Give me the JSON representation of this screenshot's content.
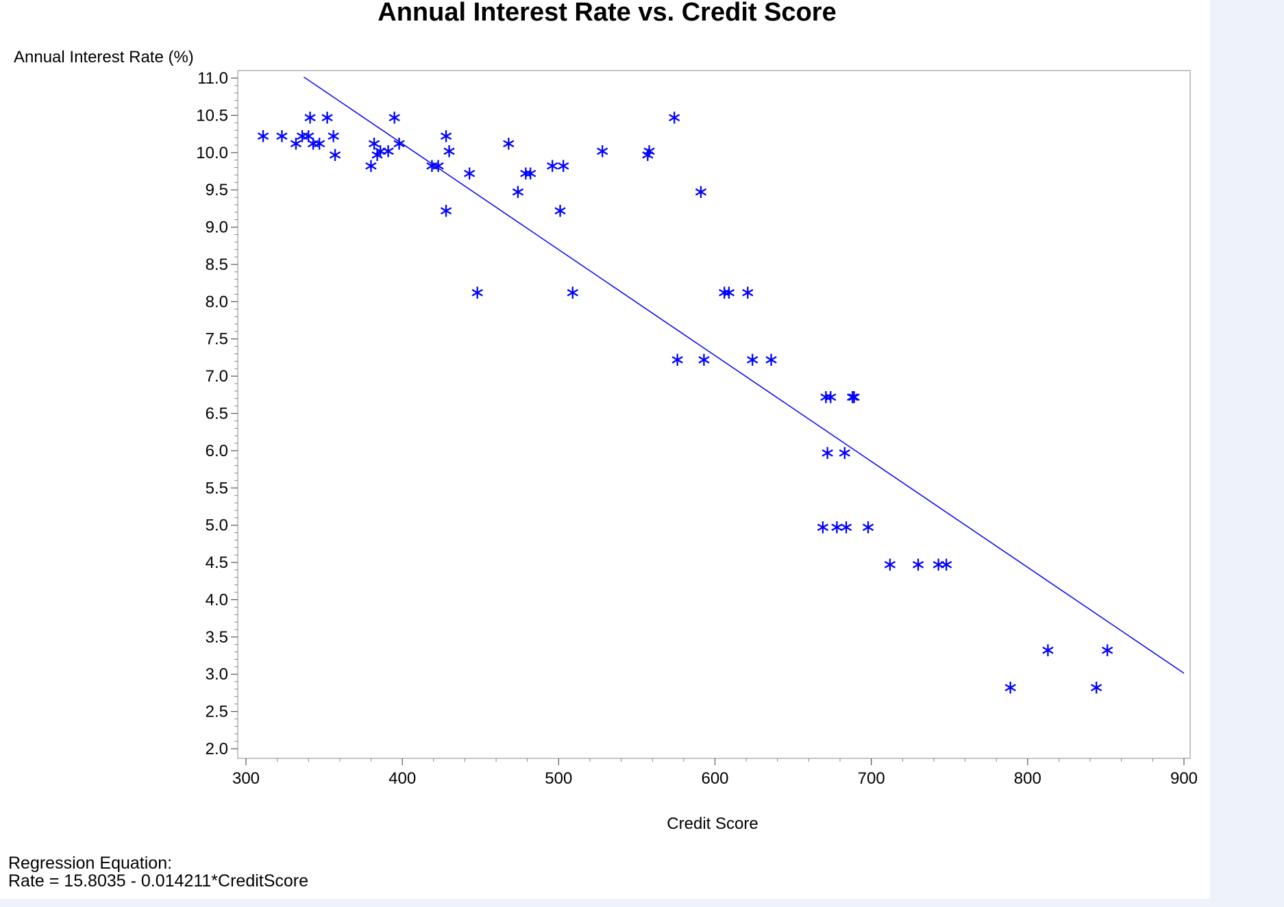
{
  "chart_data": {
    "type": "scatter",
    "title": "Annual Interest Rate vs. Credit Score",
    "xlabel": "Credit Score",
    "ylabel": "Annual Interest Rate (%)",
    "xlim": [
      300,
      900
    ],
    "ylim": [
      2.0,
      11.0
    ],
    "x_major_ticks": [
      "300",
      "400",
      "500",
      "600",
      "700",
      "800",
      "900"
    ],
    "y_major_ticks": [
      "2.0",
      "2.5",
      "3.0",
      "3.5",
      "4.0",
      "4.5",
      "5.0",
      "5.5",
      "6.0",
      "6.5",
      "7.0",
      "7.5",
      "8.0",
      "8.5",
      "9.0",
      "9.5",
      "10.0",
      "10.5",
      "11.0"
    ],
    "grid": false,
    "marker_symbol": "∗",
    "marker_color": "#0000ff",
    "line_color": "#0000ff",
    "regression": {
      "intercept": 15.8035,
      "slope": -0.014211,
      "x_range": [
        337,
        900
      ]
    },
    "points": [
      [
        311,
        10.25
      ],
      [
        323,
        10.25
      ],
      [
        332,
        10.15
      ],
      [
        336,
        10.25
      ],
      [
        340,
        10.25
      ],
      [
        341,
        10.5
      ],
      [
        343,
        10.15
      ],
      [
        347,
        10.15
      ],
      [
        352,
        10.5
      ],
      [
        356,
        10.25
      ],
      [
        357,
        10.0
      ],
      [
        380,
        9.85
      ],
      [
        382,
        10.15
      ],
      [
        384,
        10.0
      ],
      [
        386,
        10.05
      ],
      [
        391,
        10.05
      ],
      [
        395,
        10.5
      ],
      [
        398,
        10.15
      ],
      [
        419,
        9.85
      ],
      [
        423,
        9.85
      ],
      [
        428,
        10.25
      ],
      [
        428,
        9.25
      ],
      [
        430,
        10.05
      ],
      [
        443,
        9.75
      ],
      [
        448,
        8.15
      ],
      [
        468,
        10.15
      ],
      [
        474,
        9.5
      ],
      [
        479,
        9.75
      ],
      [
        482,
        9.75
      ],
      [
        496,
        9.85
      ],
      [
        501,
        9.25
      ],
      [
        503,
        9.85
      ],
      [
        509,
        8.15
      ],
      [
        528,
        10.05
      ],
      [
        557,
        10.0
      ],
      [
        558,
        10.05
      ],
      [
        574,
        10.5
      ],
      [
        576,
        7.25
      ],
      [
        591,
        9.5
      ],
      [
        593,
        7.25
      ],
      [
        606,
        8.15
      ],
      [
        609,
        8.15
      ],
      [
        621,
        8.15
      ],
      [
        624,
        7.25
      ],
      [
        636,
        7.25
      ],
      [
        669,
        5.0
      ],
      [
        671,
        6.75
      ],
      [
        672,
        6.0
      ],
      [
        674,
        6.75
      ],
      [
        678,
        5.0
      ],
      [
        683,
        6.0
      ],
      [
        684,
        5.0
      ],
      [
        688,
        6.75
      ],
      [
        689,
        6.75
      ],
      [
        698,
        5.0
      ],
      [
        712,
        4.5
      ],
      [
        730,
        4.5
      ],
      [
        743,
        4.5
      ],
      [
        748,
        4.5
      ],
      [
        789,
        2.85
      ],
      [
        813,
        3.35
      ],
      [
        844,
        2.85
      ],
      [
        851,
        3.35
      ]
    ]
  },
  "footnote": {
    "line1": "Regression Equation:",
    "line2": "Rate =  15.8035 - 0.014211*CreditScore"
  }
}
